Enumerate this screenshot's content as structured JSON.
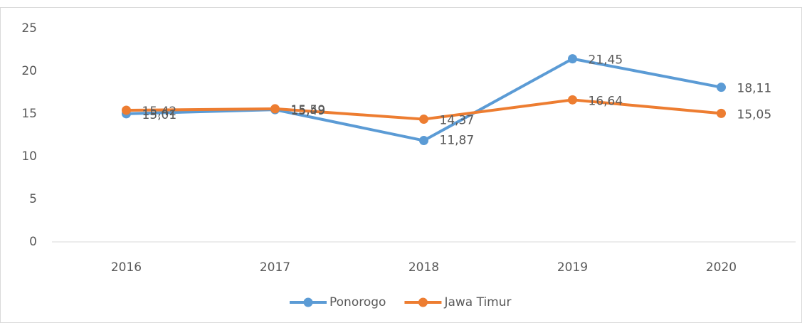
{
  "chart_data": {
    "type": "line",
    "categories": [
      "2016",
      "2017",
      "2018",
      "2019",
      "2020"
    ],
    "series": [
      {
        "name": "Ponorogo",
        "color": "#5b9bd5",
        "values": [
          15.01,
          15.49,
          11.87,
          21.45,
          18.11
        ],
        "value_labels": [
          "15,01",
          "15,49",
          "11,87",
          "21,45",
          "18,11"
        ]
      },
      {
        "name": "Jawa Timur",
        "color": "#ed7d31",
        "values": [
          15.42,
          15.59,
          14.37,
          16.64,
          15.05
        ],
        "value_labels": [
          "15,42",
          "15,59",
          "14,37",
          "16,64",
          "15,05"
        ]
      }
    ],
    "ylim": [
      0,
      25
    ],
    "yticks": [
      0,
      5,
      10,
      15,
      20,
      25
    ],
    "grid": false,
    "legend": "bottom"
  }
}
